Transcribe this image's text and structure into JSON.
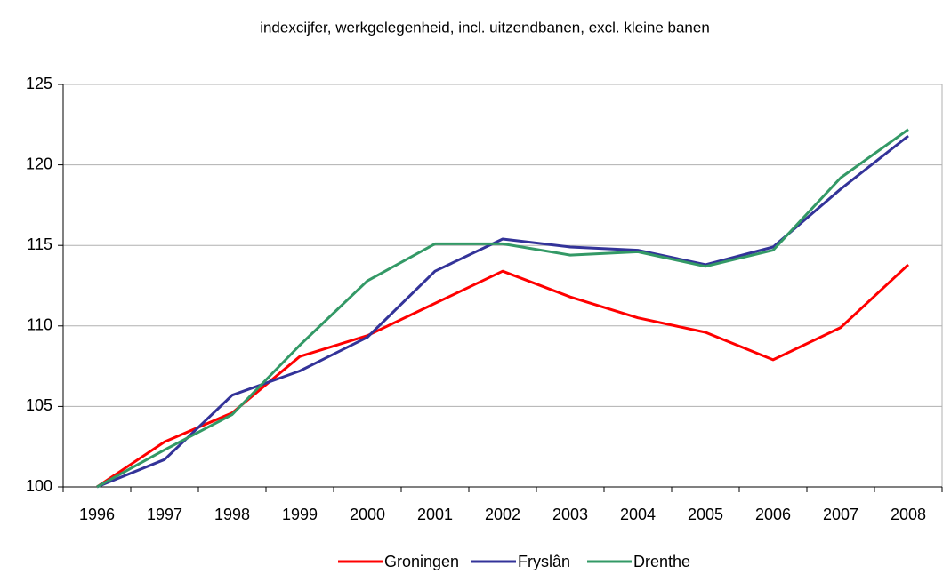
{
  "chart_data": {
    "type": "line",
    "title": "indexcijfer, werkgelegenheid, incl. uitzendbanen, excl. kleine banen",
    "categories": [
      "1996",
      "1997",
      "1998",
      "1999",
      "2000",
      "2001",
      "2002",
      "2003",
      "2004",
      "2005",
      "2006",
      "2007",
      "2008"
    ],
    "series": [
      {
        "name": "Groningen",
        "color": "#ff0000",
        "values": [
          100,
          102.8,
          104.6,
          108.1,
          109.4,
          111.4,
          113.4,
          111.8,
          110.5,
          109.6,
          107.9,
          109.9,
          113.8
        ]
      },
      {
        "name": "Fryslân",
        "color": "#333399",
        "values": [
          100,
          101.7,
          105.7,
          107.2,
          109.3,
          113.4,
          115.4,
          114.9,
          114.7,
          113.8,
          114.9,
          118.5,
          121.8
        ]
      },
      {
        "name": "Drenthe",
        "color": "#339966",
        "values": [
          100,
          102.3,
          104.5,
          108.8,
          112.8,
          115.1,
          115.1,
          114.4,
          114.6,
          113.7,
          114.7,
          119.2,
          122.2
        ]
      }
    ],
    "ylim": [
      100,
      125
    ],
    "yticks": [
      100,
      105,
      110,
      115,
      120,
      125
    ],
    "grid": true,
    "legend": "bottom"
  }
}
